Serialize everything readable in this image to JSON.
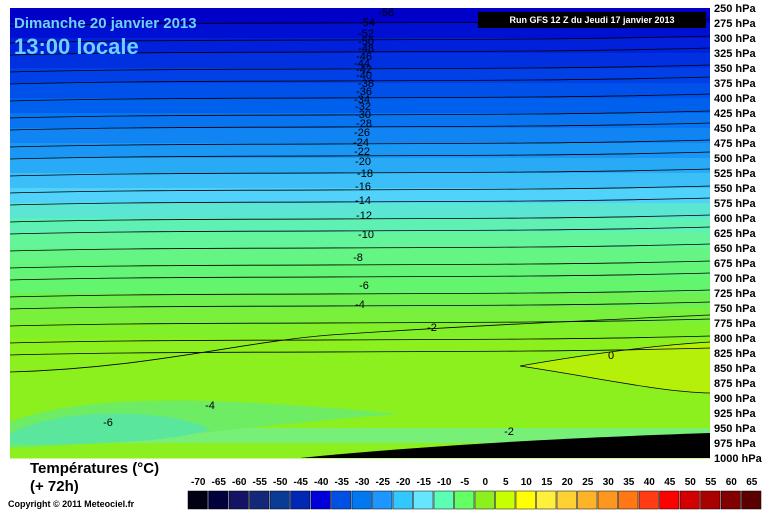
{
  "header": {
    "date": "Dimanche 20 janvier 2013",
    "time": "13:00 locale",
    "run": "Run GFS 12 Z du Jeudi 17 janvier 2013"
  },
  "footer": {
    "title": "Températures (°C)",
    "lead": "(+ 72h)",
    "copyright": "Copyright © 2011 Meteociel.fr"
  },
  "chart_data": {
    "type": "contour",
    "y_axis": {
      "labels": [
        "250 hPa",
        "275 hPa",
        "300 hPa",
        "325 hPa",
        "350 hPa",
        "375 hPa",
        "400 hPa",
        "425 hPa",
        "450 hPa",
        "475 hPa",
        "500 hPa",
        "525 hPa",
        "550 hPa",
        "575 hPa",
        "600 hPa",
        "625 hPa",
        "650 hPa",
        "675 hPa",
        "700 hPa",
        "725 hPa",
        "750 hPa",
        "775 hPa",
        "800 hPa",
        "825 hPa",
        "850 hPa",
        "875 hPa",
        "900 hPa",
        "925 hPa",
        "950 hPa",
        "975 hPa",
        "1000 hPa"
      ],
      "values": [
        250,
        275,
        300,
        325,
        350,
        375,
        400,
        425,
        450,
        475,
        500,
        525,
        550,
        575,
        600,
        625,
        650,
        675,
        700,
        725,
        750,
        775,
        800,
        825,
        850,
        875,
        900,
        925,
        950,
        975,
        1000
      ],
      "range": [
        250,
        1000
      ]
    },
    "color_scale": {
      "values": [
        -70,
        -65,
        -60,
        -55,
        -50,
        -45,
        -40,
        -35,
        -30,
        -25,
        -20,
        -15,
        -10,
        -5,
        0,
        5,
        10,
        15,
        20,
        25,
        30,
        35,
        40,
        45,
        50,
        55,
        60,
        65
      ],
      "labels": [
        "-70",
        "-65",
        "-60",
        "-55",
        "-50",
        "-45",
        "-40",
        "-35",
        "-30",
        "-25",
        "-20",
        "-15",
        "-10",
        "-5",
        "0",
        "5",
        "10",
        "15",
        "20",
        "25",
        "30",
        "35",
        "40",
        "45",
        "50",
        "55",
        "60",
        "65"
      ],
      "colors": [
        "#000014",
        "#00003c",
        "#141464",
        "#14287a",
        "#0a3c96",
        "#0028b4",
        "#0000dc",
        "#0050e6",
        "#0078f0",
        "#1e96ff",
        "#32c8ff",
        "#64e6ff",
        "#5affb4",
        "#64ff64",
        "#8cf01e",
        "#c8ff00",
        "#ffff00",
        "#fff03c",
        "#ffd232",
        "#ffb428",
        "#ff961e",
        "#ff7814",
        "#ff3c14",
        "#ff0000",
        "#d20000",
        "#aa0000",
        "#820000",
        "#5a0000"
      ]
    },
    "isotherm_labels": [
      "-56",
      "-54",
      "-52",
      "-50",
      "-48",
      "-46",
      "-44",
      "-42",
      "-40",
      "-38",
      "-36",
      "-34",
      "-32",
      "-30",
      "-28",
      "-26",
      "-24",
      "-22",
      "-20",
      "-18",
      "-16",
      "-14",
      "-12",
      "-10",
      "-8",
      "-6",
      "-4",
      "-2",
      "0",
      "-4",
      "-6",
      "-2"
    ]
  }
}
